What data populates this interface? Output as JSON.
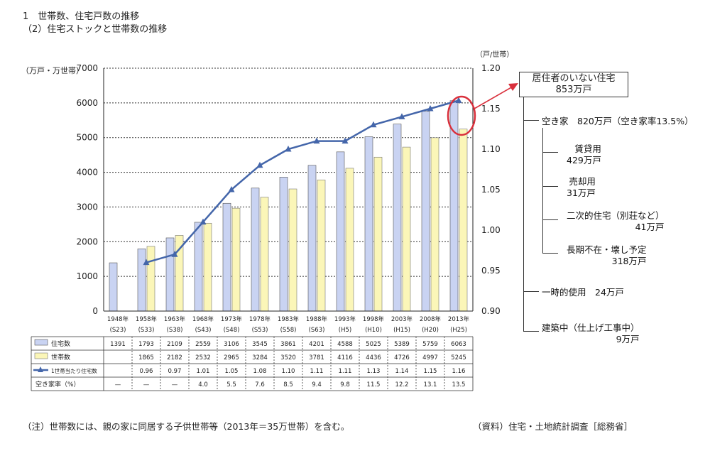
{
  "header": {
    "line1": "1　世帯数、住宅戸数の推移",
    "line2": "（2）住宅ストックと世帯数の推移"
  },
  "chart_data": {
    "type": "bar",
    "left_axis_label": "（万戸・万世帯）",
    "right_axis_label": "（戸/世帯）",
    "ylim": [
      0,
      7000
    ],
    "y_ticks": [
      0,
      1000,
      2000,
      3000,
      4000,
      5000,
      6000,
      7000
    ],
    "y2lim": [
      0.9,
      1.2
    ],
    "y2_ticks": [
      "0.90",
      "0.95",
      "1.00",
      "1.05",
      "1.10",
      "1.15",
      "1.20"
    ],
    "categories": [
      {
        "year": "1948年",
        "era": "(S23)"
      },
      {
        "year": "1958年",
        "era": "(S33)"
      },
      {
        "year": "1963年",
        "era": "(S38)"
      },
      {
        "year": "1968年",
        "era": "(S43)"
      },
      {
        "year": "1973年",
        "era": "(S48)"
      },
      {
        "year": "1978年",
        "era": "(S53)"
      },
      {
        "year": "1983年",
        "era": "(S58)"
      },
      {
        "year": "1988年",
        "era": "(S63)"
      },
      {
        "year": "1993年",
        "era": "(H5)"
      },
      {
        "year": "1998年",
        "era": "(H10)"
      },
      {
        "year": "2003年",
        "era": "(H15)"
      },
      {
        "year": "2008年",
        "era": "(H20)"
      },
      {
        "year": "2013年",
        "era": "(H25)"
      }
    ],
    "series": [
      {
        "name": "住宅数",
        "type": "bar",
        "color": "#c9d3f2",
        "values": [
          1391,
          1793,
          2109,
          2559,
          3106,
          3545,
          3861,
          4201,
          4588,
          5025,
          5389,
          5759,
          6063
        ]
      },
      {
        "name": "世帯数",
        "type": "bar",
        "color": "#fbf6b8",
        "values": [
          null,
          1865,
          2182,
          2532,
          2965,
          3284,
          3520,
          3781,
          4116,
          4436,
          4726,
          4997,
          5245
        ]
      },
      {
        "name": "1世帯当たり住宅数",
        "type": "line",
        "axis": "right",
        "color": "#4466aa",
        "values": [
          null,
          0.96,
          0.97,
          1.01,
          1.05,
          1.08,
          1.1,
          1.11,
          1.11,
          1.13,
          1.14,
          1.15,
          1.16
        ]
      }
    ],
    "table_rows": [
      {
        "label": "住宅数",
        "cells": [
          "1391",
          "1793",
          "2109",
          "2559",
          "3106",
          "3545",
          "3861",
          "4201",
          "4588",
          "5025",
          "5389",
          "5759",
          "6063"
        ]
      },
      {
        "label": "世帯数",
        "cells": [
          "",
          "1865",
          "2182",
          "2532",
          "2965",
          "3284",
          "3520",
          "3781",
          "4116",
          "4436",
          "4726",
          "4997",
          "5245"
        ]
      },
      {
        "label": "1世帯当たり住宅数",
        "cells": [
          "",
          "0.96",
          "0.97",
          "1.01",
          "1.05",
          "1.08",
          "1.10",
          "1.11",
          "1.11",
          "1.13",
          "1.14",
          "1.15",
          "1.16"
        ]
      },
      {
        "label": "空き家率（%）",
        "cells": [
          "—",
          "—",
          "—",
          "4.0",
          "5.5",
          "7.6",
          "8.5",
          "9.4",
          "9.8",
          "11.5",
          "12.2",
          "13.1",
          "13.5"
        ]
      }
    ],
    "highlight_color": "#d9303c"
  },
  "breakdown": {
    "top": "居住者のいない住宅\n853万戸",
    "akiya": "空き家　820万戸（空き家率13.5%）",
    "chintai": "賃貸用\n429万戸",
    "baikyaku": "売却用\n31万戸",
    "niji": "二次的住宅（別荘など）\n41万戸",
    "choki": "長期不在・壊し予定\n318万戸",
    "ichiji": "一時的使用　24万戸",
    "kenchiku": "建築中（仕上げ工事中）\n9万戸"
  },
  "footer": {
    "note": "（注）世帯数には、親の家に同居する子供世帯等（2013年＝35万世帯）を含む。",
    "source": "（資料）住宅・土地統計調査［総務省］"
  }
}
